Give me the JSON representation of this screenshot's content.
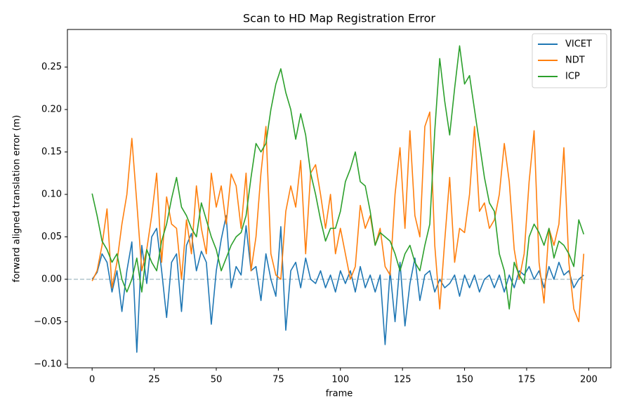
{
  "chart_data": {
    "type": "line",
    "title": "Scan to HD Map Registration Error",
    "x_label": "frame",
    "y_label": "forward aligned translation error (m)",
    "x": [
      0,
      2,
      4,
      6,
      8,
      10,
      12,
      14,
      16,
      18,
      20,
      22,
      24,
      26,
      28,
      30,
      32,
      34,
      36,
      38,
      40,
      42,
      44,
      46,
      48,
      50,
      52,
      54,
      56,
      58,
      60,
      62,
      64,
      66,
      68,
      70,
      72,
      74,
      76,
      78,
      80,
      82,
      84,
      86,
      88,
      90,
      92,
      94,
      96,
      98,
      100,
      102,
      104,
      106,
      108,
      110,
      112,
      114,
      116,
      118,
      120,
      122,
      124,
      126,
      128,
      130,
      132,
      134,
      136,
      138,
      140,
      142,
      144,
      146,
      148,
      150,
      152,
      154,
      156,
      158,
      160,
      162,
      164,
      166,
      168,
      170,
      172,
      174,
      176,
      178,
      180,
      182,
      184,
      186,
      188,
      190,
      192,
      194,
      196,
      198
    ],
    "series": [
      {
        "name": "VICET",
        "color": "#1f77b4",
        "values": [
          0.0,
          0.008,
          0.03,
          0.02,
          -0.015,
          0.01,
          -0.038,
          0.01,
          0.044,
          -0.086,
          0.04,
          -0.005,
          0.05,
          0.06,
          0.01,
          -0.045,
          0.02,
          0.03,
          -0.038,
          0.04,
          0.054,
          0.01,
          0.033,
          0.02,
          -0.053,
          0.01,
          0.047,
          0.075,
          -0.01,
          0.015,
          0.005,
          0.063,
          0.01,
          0.015,
          -0.025,
          0.03,
          0.0,
          -0.02,
          0.062,
          -0.06,
          0.01,
          0.02,
          -0.01,
          0.025,
          0.0,
          -0.005,
          0.01,
          -0.01,
          0.005,
          -0.015,
          0.01,
          -0.005,
          0.01,
          -0.015,
          0.015,
          -0.01,
          0.005,
          -0.015,
          0.005,
          -0.077,
          0.01,
          -0.05,
          0.02,
          -0.055,
          -0.005,
          0.025,
          -0.025,
          0.005,
          0.01,
          -0.015,
          0.0,
          -0.01,
          -0.005,
          0.005,
          -0.02,
          0.005,
          -0.01,
          0.005,
          -0.015,
          0.0,
          0.005,
          -0.01,
          0.005,
          -0.015,
          0.005,
          -0.01,
          0.01,
          0.005,
          0.015,
          0.0,
          0.01,
          -0.01,
          0.015,
          0.0,
          0.02,
          0.005,
          0.01,
          -0.01,
          0.0,
          0.005
        ]
      },
      {
        "name": "NDT",
        "color": "#ff7f0e",
        "values": [
          -0.002,
          0.01,
          0.04,
          0.083,
          -0.01,
          0.02,
          0.065,
          0.1,
          0.166,
          0.09,
          0.01,
          0.035,
          0.075,
          0.125,
          0.02,
          0.097,
          0.065,
          0.06,
          0.0,
          0.07,
          0.03,
          0.11,
          0.06,
          0.03,
          0.125,
          0.085,
          0.11,
          0.065,
          0.124,
          0.11,
          0.06,
          0.125,
          0.01,
          0.05,
          0.125,
          0.18,
          0.03,
          0.005,
          0.0,
          0.08,
          0.11,
          0.085,
          0.14,
          0.03,
          0.125,
          0.135,
          0.1,
          0.06,
          0.1,
          0.03,
          0.06,
          0.03,
          0.0,
          0.015,
          0.087,
          0.06,
          0.075,
          0.04,
          0.06,
          0.015,
          0.005,
          0.1,
          0.155,
          0.06,
          0.175,
          0.075,
          0.05,
          0.18,
          0.197,
          0.04,
          -0.035,
          0.045,
          0.12,
          0.02,
          0.06,
          0.055,
          0.1,
          0.18,
          0.08,
          0.09,
          0.06,
          0.07,
          0.1,
          0.16,
          0.115,
          0.035,
          0.0,
          0.03,
          0.115,
          0.175,
          0.02,
          -0.028,
          0.06,
          0.04,
          0.065,
          0.155,
          0.02,
          -0.035,
          -0.05,
          0.03
        ]
      },
      {
        "name": "ICP",
        "color": "#2ca02c",
        "values": [
          0.101,
          0.075,
          0.045,
          0.035,
          0.02,
          0.03,
          0.0,
          -0.015,
          0.0,
          0.025,
          -0.015,
          0.035,
          0.02,
          0.01,
          0.045,
          0.065,
          0.095,
          0.12,
          0.085,
          0.075,
          0.06,
          0.05,
          0.09,
          0.07,
          0.05,
          0.035,
          0.01,
          0.025,
          0.04,
          0.05,
          0.055,
          0.075,
          0.12,
          0.16,
          0.15,
          0.16,
          0.2,
          0.23,
          0.248,
          0.22,
          0.2,
          0.165,
          0.195,
          0.17,
          0.125,
          0.1,
          0.07,
          0.045,
          0.06,
          0.06,
          0.08,
          0.115,
          0.13,
          0.15,
          0.115,
          0.11,
          0.08,
          0.04,
          0.055,
          0.05,
          0.045,
          0.03,
          0.01,
          0.03,
          0.04,
          0.02,
          0.01,
          0.04,
          0.065,
          0.175,
          0.26,
          0.21,
          0.17,
          0.225,
          0.275,
          0.23,
          0.24,
          0.2,
          0.16,
          0.12,
          0.09,
          0.08,
          0.03,
          0.01,
          -0.035,
          0.02,
          0.005,
          -0.005,
          0.05,
          0.065,
          0.055,
          0.04,
          0.06,
          0.025,
          0.045,
          0.04,
          0.03,
          0.015,
          0.07,
          0.053
        ]
      }
    ],
    "hline": 0,
    "hline_color": "#b0c4cc",
    "xlim": [
      -9.95,
      208.95
    ],
    "xticks": [
      0,
      25,
      50,
      75,
      100,
      125,
      150,
      175,
      200
    ],
    "ylim": [
      -0.1043,
      0.2943
    ],
    "yticks": [
      {
        "value": -0.1,
        "label": "−0.10"
      },
      {
        "value": -0.05,
        "label": "−0.05"
      },
      {
        "value": 0,
        "label": "0.00"
      },
      {
        "value": 0.05,
        "label": "0.05"
      },
      {
        "value": 0.1,
        "label": "0.10"
      },
      {
        "value": 0.15,
        "label": "0.15"
      },
      {
        "value": 0.2,
        "label": "0.20"
      },
      {
        "value": 0.25,
        "label": "0.25"
      }
    ],
    "legend": "upper right",
    "grid": false
  }
}
